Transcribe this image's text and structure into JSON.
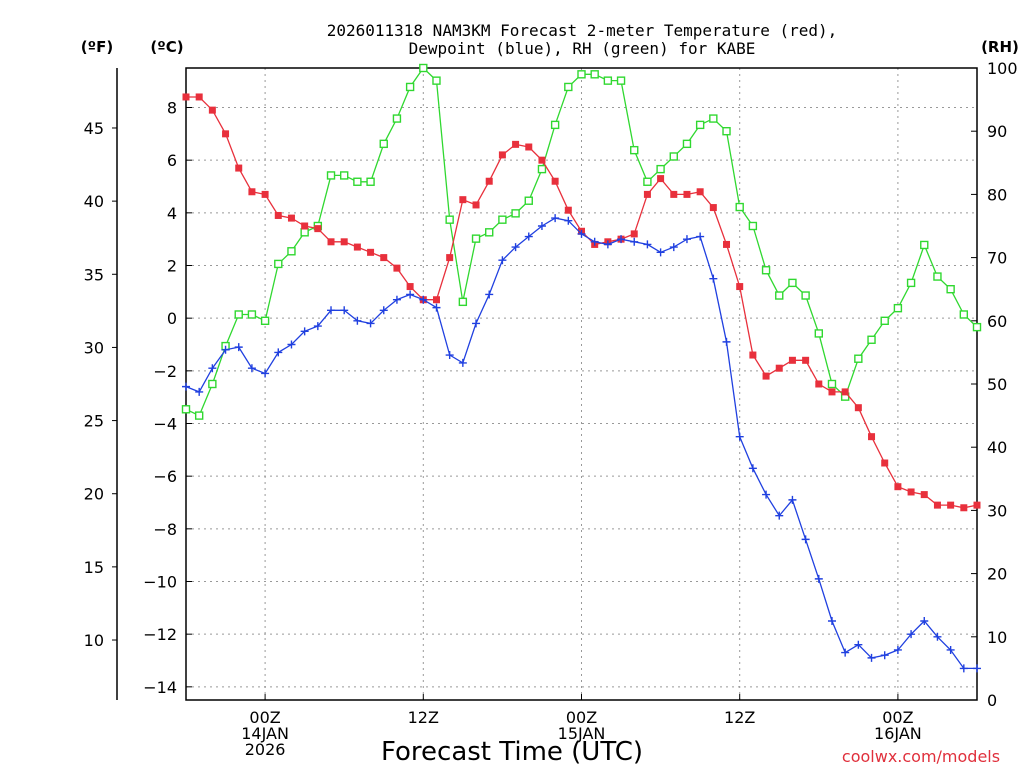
{
  "chart_data": {
    "type": "line",
    "title_line1": "2026011318 NAM3KM Forecast 2-meter Temperature (red),",
    "title_line2": "Dewpoint (blue), RH (green) for KABE",
    "xlabel": "Forecast Time (UTC)",
    "watermark": "coolwx.com/models",
    "units": {
      "fahrenheit": "(ºF)",
      "celsius": "(ºC)",
      "rh": "(RH)"
    },
    "celsius_axis": {
      "range": [
        -14.5,
        9.5
      ],
      "ticks": [
        "8",
        "6",
        "4",
        "2",
        "0",
        "−2",
        "−4",
        "−6",
        "−8",
        "−10",
        "−12",
        "−14"
      ],
      "tick_values": [
        8,
        6,
        4,
        2,
        0,
        -2,
        -4,
        -6,
        -8,
        -10,
        -12,
        -14
      ]
    },
    "fahrenheit_axis": {
      "range": [
        5.9,
        49.1
      ],
      "ticks": [
        "45",
        "40",
        "35",
        "30",
        "25",
        "20",
        "15",
        "10"
      ],
      "tick_values": [
        45,
        40,
        35,
        30,
        25,
        20,
        15,
        10
      ]
    },
    "rh_axis": {
      "range": [
        0,
        100
      ],
      "ticks": [
        "100",
        "90",
        "80",
        "70",
        "60",
        "50",
        "40",
        "30",
        "20",
        "10",
        "0"
      ],
      "tick_values": [
        100,
        90,
        80,
        70,
        60,
        50,
        40,
        30,
        20,
        10,
        0
      ]
    },
    "x_range_hours": [
      0,
      60
    ],
    "x_ticks": [
      {
        "hour": 6,
        "lines": [
          "00Z",
          "14JAN",
          "2026"
        ]
      },
      {
        "hour": 18,
        "lines": [
          "12Z",
          "",
          ""
        ]
      },
      {
        "hour": 30,
        "lines": [
          "00Z",
          "15JAN",
          ""
        ]
      },
      {
        "hour": 42,
        "lines": [
          "12Z",
          "",
          ""
        ]
      },
      {
        "hour": 54,
        "lines": [
          "00Z",
          "16JAN",
          ""
        ]
      }
    ],
    "series": [
      {
        "name": "2-meter Temperature",
        "color": "#e8303c",
        "marker": "filled-square",
        "axis": "celsius",
        "x": [
          0,
          1,
          2,
          3,
          4,
          5,
          6,
          7,
          8,
          9,
          10,
          11,
          12,
          13,
          14,
          15,
          16,
          17,
          18,
          19,
          20,
          21,
          22,
          23,
          24,
          25,
          26,
          27,
          28,
          29,
          30,
          31,
          32,
          33,
          34,
          35,
          36,
          37,
          38,
          39,
          40,
          41,
          42,
          43,
          44,
          45,
          46,
          47,
          48,
          49,
          50,
          51,
          52,
          53,
          54,
          55,
          56,
          57,
          58,
          59,
          60
        ],
        "values": [
          8.4,
          8.4,
          7.9,
          7.0,
          5.7,
          4.8,
          4.7,
          3.9,
          3.8,
          3.5,
          3.4,
          2.9,
          2.9,
          2.7,
          2.5,
          2.3,
          1.9,
          1.2,
          0.7,
          0.7,
          2.3,
          4.5,
          4.3,
          5.2,
          6.2,
          6.6,
          6.5,
          6.0,
          5.2,
          4.1,
          3.3,
          2.8,
          2.9,
          3.0,
          3.2,
          4.7,
          5.3,
          4.7,
          4.7,
          4.8,
          4.2,
          2.8,
          1.2,
          -1.4,
          -2.2,
          -1.9,
          -1.6,
          -1.6,
          -2.5,
          -2.8,
          -2.8,
          -3.4,
          -4.5,
          -5.5,
          -6.4,
          -6.6,
          -6.7,
          -7.1,
          -7.1,
          -7.2,
          -7.1
        ]
      },
      {
        "name": "Dewpoint",
        "color": "#2040e0",
        "marker": "plus",
        "axis": "celsius",
        "x": [
          0,
          1,
          2,
          3,
          4,
          5,
          6,
          7,
          8,
          9,
          10,
          11,
          12,
          13,
          14,
          15,
          16,
          17,
          18,
          19,
          20,
          21,
          22,
          23,
          24,
          25,
          26,
          27,
          28,
          29,
          30,
          31,
          32,
          33,
          34,
          35,
          36,
          37,
          38,
          39,
          40,
          41,
          42,
          43,
          44,
          45,
          46,
          47,
          48,
          49,
          50,
          51,
          52,
          53,
          54,
          55,
          56,
          57,
          58,
          59,
          60
        ],
        "values": [
          -2.6,
          -2.8,
          -1.9,
          -1.2,
          -1.1,
          -1.9,
          -2.1,
          -1.3,
          -1.0,
          -0.5,
          -0.3,
          0.3,
          0.3,
          -0.1,
          -0.2,
          0.3,
          0.7,
          0.9,
          0.7,
          0.4,
          -1.4,
          -1.7,
          -0.2,
          0.9,
          2.2,
          2.7,
          3.1,
          3.5,
          3.8,
          3.7,
          3.2,
          2.9,
          2.8,
          3.0,
          2.9,
          2.8,
          2.5,
          2.7,
          3.0,
          3.1,
          1.5,
          -0.9,
          -4.5,
          -5.7,
          -6.7,
          -7.5,
          -6.9,
          -8.4,
          -9.9,
          -11.5,
          -12.7,
          -12.4,
          -12.9,
          -12.8,
          -12.6,
          -12.0,
          -11.5,
          -12.1,
          -12.6,
          -13.3,
          -13.3
        ]
      },
      {
        "name": "RH",
        "color": "#30d830",
        "marker": "open-square",
        "axis": "rh",
        "x": [
          0,
          1,
          2,
          3,
          4,
          5,
          6,
          7,
          8,
          9,
          10,
          11,
          12,
          13,
          14,
          15,
          16,
          17,
          18,
          19,
          20,
          21,
          22,
          23,
          24,
          25,
          26,
          27,
          28,
          29,
          30,
          31,
          32,
          33,
          34,
          35,
          36,
          37,
          38,
          39,
          40,
          41,
          42,
          43,
          44,
          45,
          46,
          47,
          48,
          49,
          50,
          51,
          52,
          53,
          54,
          55,
          56,
          57,
          58,
          59,
          60
        ],
        "values": [
          46,
          45,
          50,
          56,
          61,
          61,
          60,
          69,
          71,
          74,
          75,
          83,
          83,
          82,
          82,
          88,
          92,
          97,
          100,
          98,
          76,
          63,
          73,
          74,
          76,
          77,
          79,
          84,
          91,
          97,
          99,
          99,
          98,
          98,
          87,
          82,
          84,
          86,
          88,
          91,
          92,
          90,
          78,
          75,
          68,
          64,
          66,
          64,
          58,
          50,
          48,
          54,
          57,
          60,
          62,
          66,
          72,
          67,
          65,
          61,
          59
        ]
      }
    ]
  }
}
